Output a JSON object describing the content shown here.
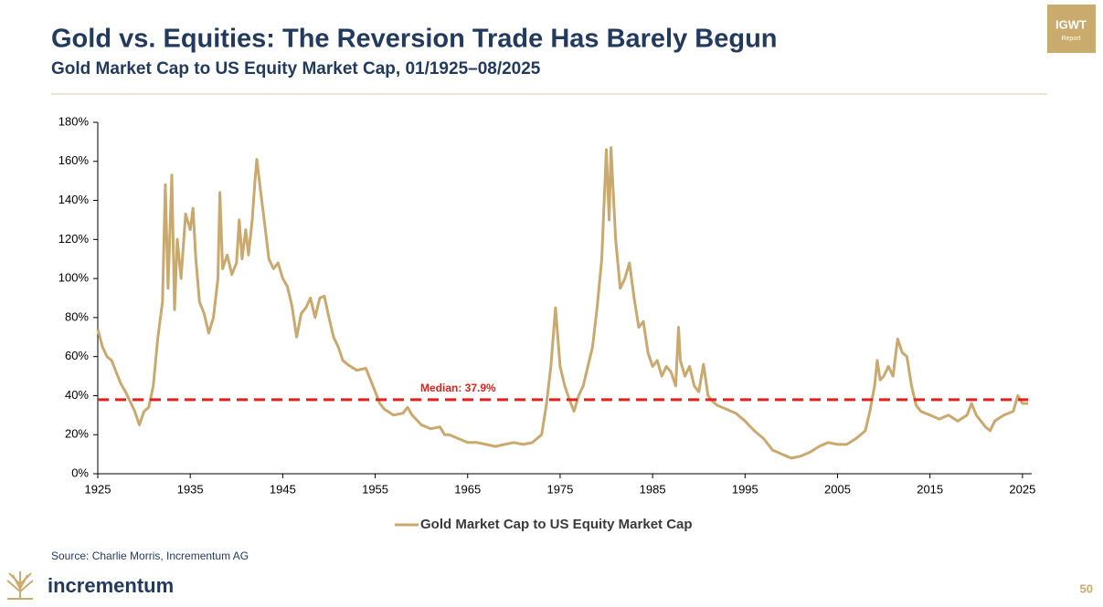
{
  "slide": {
    "title": "Gold vs. Equities: The Reversion Trade Has Barely Begun",
    "subtitle": "Gold Market Cap to US Equity Market Cap, 01/1925–08/2025",
    "badge": "IGWT",
    "badge_sub": "Report",
    "source": "Source: Charlie Morris, Incrementum AG",
    "brand": "incrementum",
    "page": "50"
  },
  "chart_data": {
    "type": "line",
    "x": [
      1925,
      1925.5,
      1926,
      1926.5,
      1927,
      1927.5,
      1928,
      1928.5,
      1929,
      1929.5,
      1930,
      1930.5,
      1931,
      1931.5,
      1932,
      1932.3,
      1932.6,
      1933,
      1933.3,
      1933.6,
      1934,
      1934.5,
      1935,
      1935.3,
      1935.6,
      1936,
      1936.5,
      1937,
      1937.5,
      1938,
      1938.2,
      1938.5,
      1939,
      1939.5,
      1940,
      1940.3,
      1940.6,
      1941,
      1941.3,
      1941.7,
      1942,
      1942.2,
      1942.6,
      1943,
      1943.5,
      1944,
      1944.5,
      1945,
      1945.5,
      1946,
      1946.5,
      1947,
      1947.5,
      1948,
      1948.5,
      1949,
      1949.5,
      1950,
      1950.5,
      1951,
      1951.5,
      1952,
      1953,
      1954,
      1954.5,
      1955,
      1955.5,
      1956,
      1957,
      1958,
      1958.5,
      1959,
      1960,
      1961,
      1962,
      1962.5,
      1963,
      1964,
      1965,
      1966,
      1967,
      1968,
      1969,
      1970,
      1971,
      1972,
      1972.5,
      1973,
      1973.5,
      1974,
      1974.5,
      1975,
      1975.5,
      1976,
      1976.5,
      1977,
      1977.5,
      1978,
      1978.5,
      1979,
      1979.5,
      1980,
      1980.3,
      1980.5,
      1981,
      1981.5,
      1982,
      1982.5,
      1983,
      1983.5,
      1984,
      1984.5,
      1985,
      1985.5,
      1986,
      1986.5,
      1987,
      1987.5,
      1987.8,
      1988,
      1988.5,
      1989,
      1989.5,
      1990,
      1990.5,
      1991,
      1991.5,
      1992,
      1993,
      1994,
      1995,
      1996,
      1997,
      1998,
      1999,
      2000,
      2001,
      2002,
      2003,
      2004,
      2005,
      2006,
      2007,
      2008,
      2008.5,
      2009,
      2009.3,
      2009.6,
      2010,
      2010.5,
      2011,
      2011.5,
      2012,
      2012.5,
      2013,
      2013.5,
      2014,
      2015,
      2016,
      2017,
      2018,
      2019,
      2019.5,
      2020,
      2021,
      2021.5,
      2022,
      2023,
      2024,
      2024.5,
      2025,
      2025.6
    ],
    "series": [
      {
        "name": "Gold Market Cap to US Equity Market Cap",
        "color": "#c9a96e",
        "values": [
          74,
          65,
          60,
          58,
          52,
          46,
          42,
          37,
          32,
          25,
          32,
          34,
          45,
          70,
          88,
          148,
          95,
          153,
          84,
          120,
          100,
          133,
          125,
          136,
          110,
          88,
          82,
          72,
          80,
          100,
          144,
          105,
          112,
          102,
          108,
          130,
          110,
          125,
          112,
          130,
          150,
          161,
          145,
          130,
          110,
          105,
          108,
          100,
          96,
          86,
          70,
          82,
          85,
          90,
          80,
          90,
          91,
          80,
          70,
          65,
          58,
          56,
          53,
          54,
          48,
          42,
          36,
          33,
          30,
          31,
          34,
          30,
          25,
          23,
          24,
          20,
          20,
          18,
          16,
          16,
          15,
          14,
          15,
          16,
          15,
          16,
          18,
          20,
          35,
          55,
          85,
          55,
          45,
          38,
          32,
          40,
          45,
          55,
          65,
          85,
          110,
          166,
          130,
          167,
          120,
          95,
          100,
          108,
          90,
          75,
          78,
          62,
          55,
          58,
          50,
          55,
          52,
          45,
          75,
          58,
          50,
          55,
          45,
          42,
          56,
          40,
          37,
          35,
          33,
          31,
          27,
          22,
          18,
          12,
          10,
          8,
          9,
          11,
          14,
          16,
          15,
          15,
          18,
          22,
          32,
          45,
          58,
          48,
          50,
          55,
          50,
          69,
          62,
          60,
          45,
          35,
          32,
          30,
          28,
          30,
          27,
          30,
          36,
          30,
          24,
          22,
          27,
          30,
          32,
          40,
          36,
          36
        ]
      }
    ],
    "median": {
      "value": 37.9,
      "label": "Median: 37.9%",
      "color": "#e3201b"
    },
    "xlim": [
      1925,
      2026
    ],
    "xticks": [
      1925,
      1935,
      1945,
      1955,
      1965,
      1975,
      1985,
      1995,
      2005,
      2015,
      2025
    ],
    "ylim": [
      0,
      180
    ],
    "yticks": [
      {
        "value": 0,
        "label": "0%"
      },
      {
        "value": 20,
        "label": "20%"
      },
      {
        "value": 40,
        "label": "40%"
      },
      {
        "value": 60,
        "label": "60%"
      },
      {
        "value": 80,
        "label": "80%"
      },
      {
        "value": 100,
        "label": "100%"
      },
      {
        "value": 120,
        "label": "120%"
      },
      {
        "value": 140,
        "label": "140%"
      },
      {
        "value": 160,
        "label": "160%"
      },
      {
        "value": 180,
        "label": "180%"
      }
    ],
    "grid": false,
    "legend": "bottom"
  }
}
